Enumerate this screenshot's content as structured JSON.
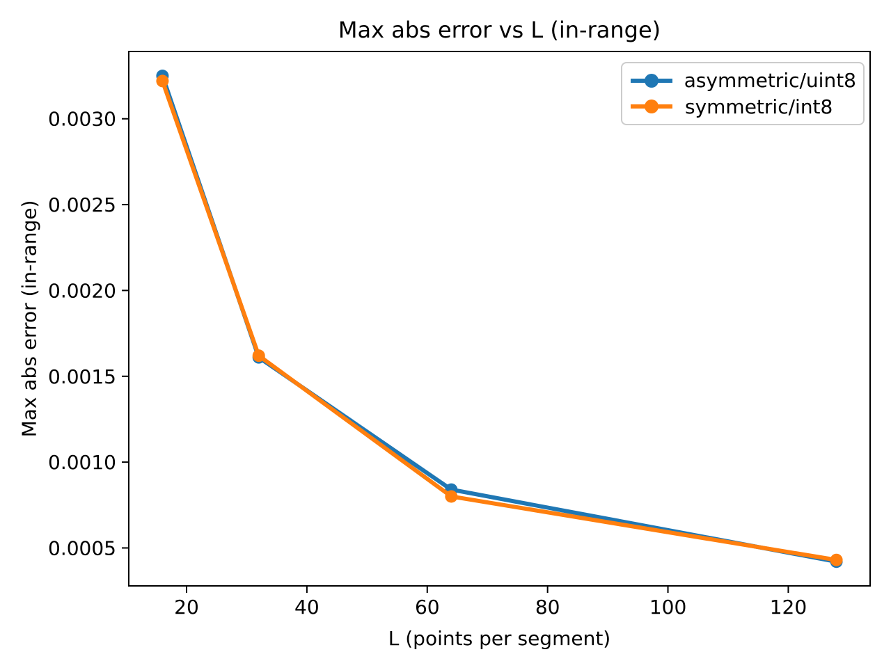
{
  "figure": {
    "background_color": "#ffffff",
    "text_color": "#000000",
    "spine_color": "#000000",
    "legend_border_color": "#cccccc"
  },
  "chart_data": {
    "type": "line",
    "title": "Max abs error vs L (in-range)",
    "xlabel": "L (points per segment)",
    "ylabel": "Max abs error (in-range)",
    "x": [
      16,
      32,
      64,
      128
    ],
    "series": [
      {
        "name": "asymmetric/uint8",
        "color": "#1f77b4",
        "values": [
          0.00325,
          0.00161,
          0.00084,
          0.00042
        ]
      },
      {
        "name": "symmetric/int8",
        "color": "#ff7f0e",
        "values": [
          0.00322,
          0.00162,
          0.0008,
          0.00043
        ]
      }
    ],
    "xlim": [
      10.4,
      133.6
    ],
    "ylim": [
      0.000279,
      0.003392
    ],
    "x_ticks": [
      20,
      40,
      60,
      80,
      100,
      120
    ],
    "y_ticks": [
      0.0005,
      0.001,
      0.0015,
      0.002,
      0.0025,
      0.003
    ],
    "y_tick_decimals": 4,
    "grid": false,
    "marker": "o",
    "legend_position": "upper right"
  }
}
